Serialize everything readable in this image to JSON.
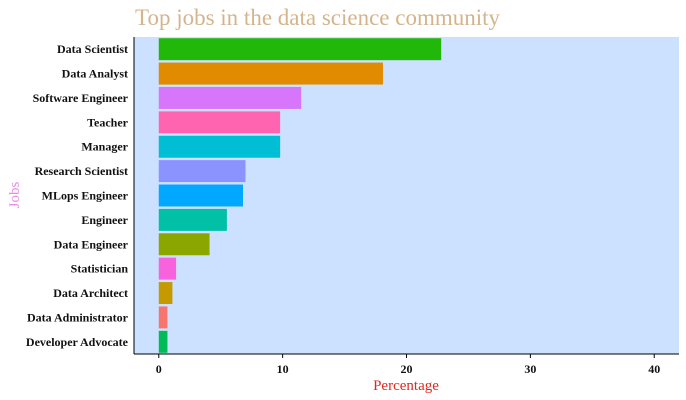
{
  "colors": {
    "title": "#d4b48c",
    "panel": "#cce0ff",
    "xlabel": "#e0281e",
    "ylabel": "#e88ae8",
    "axis": "#000000",
    "bars": [
      "#21b80a",
      "#e08b00",
      "#d775fb",
      "#ff64b0",
      "#00bfd4",
      "#8a93ff",
      "#00a9ff",
      "#00c1a6",
      "#8ca600",
      "#f863dd",
      "#c49a00",
      "#f7756d",
      "#00bb56"
    ]
  },
  "chart_data": {
    "type": "bar",
    "orientation": "horizontal",
    "title": "Top jobs in the data science community",
    "xlabel": "Percentage",
    "ylabel": "Jobs",
    "categories": [
      "Data Scientist",
      "Data Analyst",
      "Software Engineer",
      "Teacher",
      "Manager",
      "Research Scientist",
      "MLops Engineer",
      "Engineer",
      "Data Engineer",
      "Statistician",
      "Data Architect",
      "Data Administrator",
      "Developer Advocate"
    ],
    "values": [
      22.8,
      18.1,
      11.5,
      9.8,
      9.8,
      7.0,
      6.8,
      5.5,
      4.1,
      1.4,
      1.1,
      0.7,
      0.7
    ],
    "xlim": [
      -2,
      42
    ],
    "xticks": [
      "0",
      "10",
      "20",
      "30",
      "40"
    ],
    "grid": false,
    "legend": "none"
  }
}
